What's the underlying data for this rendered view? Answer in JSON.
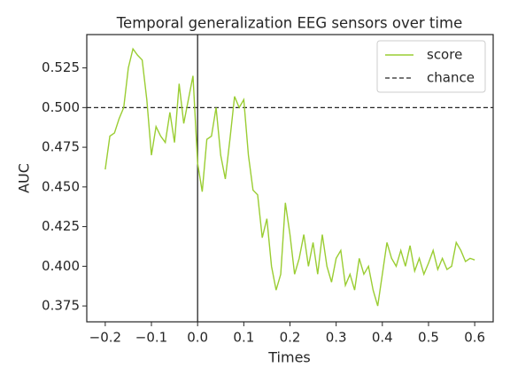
{
  "chart_data": {
    "type": "line",
    "title": "Temporal generalization EEG sensors over time",
    "x_label": "Times",
    "y_label": "AUC",
    "x": [
      -0.2,
      -0.19,
      -0.18,
      -0.17,
      -0.16,
      -0.15,
      -0.14,
      -0.13,
      -0.12,
      -0.11,
      -0.1,
      -0.09,
      -0.08,
      -0.07,
      -0.06,
      -0.05,
      -0.04,
      -0.03,
      -0.02,
      -0.01,
      0.0,
      0.01,
      0.02,
      0.03,
      0.04,
      0.05,
      0.06,
      0.07,
      0.08,
      0.09,
      0.1,
      0.11,
      0.12,
      0.13,
      0.14,
      0.15,
      0.16,
      0.17,
      0.18,
      0.19,
      0.2,
      0.21,
      0.22,
      0.23,
      0.24,
      0.25,
      0.26,
      0.27,
      0.28,
      0.29,
      0.3,
      0.31,
      0.32,
      0.33,
      0.34,
      0.35,
      0.36,
      0.37,
      0.38,
      0.39,
      0.4,
      0.41,
      0.42,
      0.43,
      0.44,
      0.45,
      0.46,
      0.47,
      0.48,
      0.49,
      0.5,
      0.51,
      0.52,
      0.53,
      0.54,
      0.55,
      0.56,
      0.57,
      0.58,
      0.59,
      0.6
    ],
    "series": [
      {
        "name": "score",
        "color": "#9acd32",
        "values": [
          0.461,
          0.482,
          0.484,
          0.493,
          0.5,
          0.525,
          0.537,
          0.533,
          0.53,
          0.505,
          0.47,
          0.488,
          0.482,
          0.478,
          0.497,
          0.478,
          0.515,
          0.49,
          0.505,
          0.52,
          0.465,
          0.447,
          0.48,
          0.482,
          0.5,
          0.47,
          0.455,
          0.48,
          0.507,
          0.5,
          0.505,
          0.47,
          0.448,
          0.445,
          0.418,
          0.43,
          0.4,
          0.385,
          0.395,
          0.44,
          0.42,
          0.395,
          0.405,
          0.42,
          0.4,
          0.415,
          0.395,
          0.42,
          0.4,
          0.39,
          0.405,
          0.41,
          0.388,
          0.395,
          0.385,
          0.405,
          0.395,
          0.4,
          0.385,
          0.375,
          0.395,
          0.415,
          0.405,
          0.4,
          0.41,
          0.4,
          0.413,
          0.397,
          0.405,
          0.395,
          0.402,
          0.41,
          0.398,
          0.405,
          0.398,
          0.4,
          0.415,
          0.41,
          0.403,
          0.405,
          0.404
        ]
      }
    ],
    "chance": {
      "name": "chance",
      "value": 0.5,
      "color": "#262626",
      "style": "dashed"
    },
    "vline": 0,
    "xlim": [
      -0.24,
      0.64
    ],
    "ylim": [
      0.365,
      0.546
    ],
    "xticks": [
      {
        "value": -0.2,
        "label": "−0.2"
      },
      {
        "value": -0.1,
        "label": "−0.1"
      },
      {
        "value": 0,
        "label": "0.0"
      },
      0.1,
      0.2,
      0.3,
      0.4,
      0.5,
      0.6
    ],
    "yticks": [
      0.375,
      {
        "value": 0.4,
        "label": "0.400"
      },
      0.425,
      {
        "value": 0.45,
        "label": "0.450"
      },
      0.475,
      {
        "value": 0.5,
        "label": "0.500"
      },
      0.525
    ],
    "legend": "upper right"
  }
}
